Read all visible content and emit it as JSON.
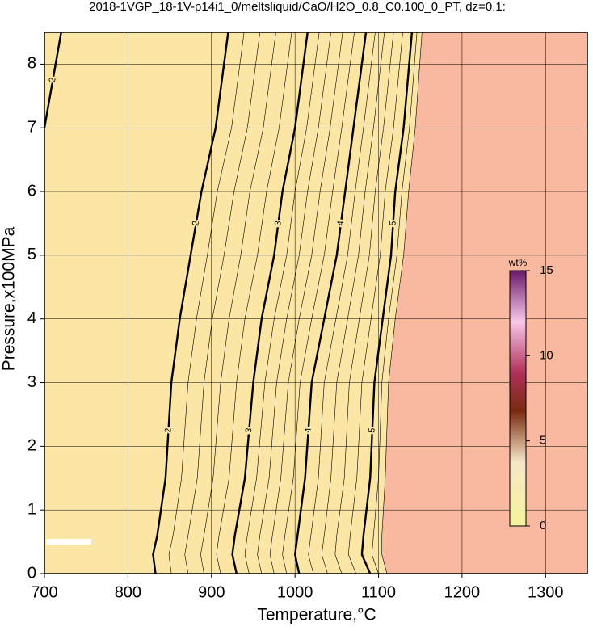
{
  "chart_data": {
    "type": "contour",
    "title": "2018-1VGP_18-1V-p14i1_0/meltsliquid/CaO/H2O_0.8_C0.100_0_PT, dz=0.1:",
    "x_label": "Temperature,°C",
    "y_label": "Pressure,x100MPa",
    "xlim": [
      700,
      1350
    ],
    "xticks": [
      700,
      800,
      900,
      1000,
      1100,
      1200,
      1300
    ],
    "ylim": [
      0,
      8.5
    ],
    "yticks": [
      0,
      1,
      2,
      3,
      4,
      5,
      6,
      7,
      8
    ],
    "grid": true,
    "fill_colors": [
      "#fbe6a6",
      "#f9b8a0"
    ],
    "y": [
      0,
      0.3,
      0.6,
      1.5,
      3,
      4,
      5,
      6,
      7,
      8.5
    ],
    "contours": [
      {
        "level": 2,
        "x": [
          null,
          null,
          null,
          null,
          null,
          null,
          null,
          null,
          700,
          720
        ]
      },
      {
        "level": 2,
        "x": [
          833,
          830,
          835,
          845,
          852,
          862,
          875,
          888,
          905,
          920
        ]
      },
      {
        "level": 2.2,
        "x": [
          852,
          849,
          854,
          864,
          872,
          882,
          895,
          907,
          924,
          939
        ]
      },
      {
        "level": 2.4,
        "x": [
          872,
          868,
          872,
          883,
          891,
          901,
          915,
          927,
          943,
          958
        ]
      },
      {
        "level": 2.6,
        "x": [
          891,
          887,
          891,
          902,
          911,
          921,
          935,
          946,
          962,
          977
        ]
      },
      {
        "level": 2.8,
        "x": [
          911,
          906,
          909,
          921,
          930,
          940,
          955,
          966,
          981,
          996
        ]
      },
      {
        "level": 3,
        "x": [
          930,
          925,
          928,
          940,
          950,
          960,
          975,
          985,
          1000,
          1015
        ]
      },
      {
        "level": 3.2,
        "x": [
          945,
          940,
          943,
          954,
          964,
          975,
          990,
          1000,
          1014,
          1029
        ]
      },
      {
        "level": 3.4,
        "x": [
          960,
          955,
          958,
          969,
          978,
          990,
          1005,
          1015,
          1028,
          1043
        ]
      },
      {
        "level": 3.6,
        "x": [
          975,
          970,
          973,
          983,
          992,
          1005,
          1020,
          1030,
          1042,
          1057
        ]
      },
      {
        "level": 3.8,
        "x": [
          990,
          985,
          988,
          998,
          1006,
          1020,
          1035,
          1045,
          1056,
          1071
        ]
      },
      {
        "level": 4,
        "x": [
          1005,
          1000,
          1003,
          1012,
          1020,
          1035,
          1050,
          1060,
          1070,
          1085
        ]
      },
      {
        "level": 4.2,
        "x": [
          1022,
          1016,
          1019,
          1028,
          1035,
          1049,
          1063,
          1072,
          1082,
          1096
        ]
      },
      {
        "level": 4.4,
        "x": [
          1039,
          1032,
          1035,
          1043,
          1050,
          1063,
          1076,
          1084,
          1094,
          1107
        ]
      },
      {
        "level": 4.6,
        "x": [
          1056,
          1048,
          1050,
          1059,
          1065,
          1077,
          1089,
          1096,
          1106,
          1118
        ]
      },
      {
        "level": 4.8,
        "x": [
          1073,
          1064,
          1066,
          1074,
          1080,
          1091,
          1102,
          1108,
          1118,
          1129
        ]
      },
      {
        "level": 5,
        "x": [
          1090,
          1080,
          1082,
          1090,
          1095,
          1105,
          1115,
          1120,
          1130,
          1140
        ]
      },
      {
        "level": 5.2,
        "x": [
          1100,
          1092,
          1094,
          1100,
          1104,
          1112,
          1122,
          1128,
          1137,
          1146
        ]
      },
      {
        "level": 5.4,
        "x": [
          1110,
          1104,
          1104,
          1108,
          1112,
          1120,
          1130,
          1136,
          1144,
          1152
        ]
      }
    ],
    "colorbar": {
      "label": "wt%",
      "lim": [
        0,
        15
      ],
      "ticks": [
        0,
        5,
        10,
        15
      ]
    }
  }
}
